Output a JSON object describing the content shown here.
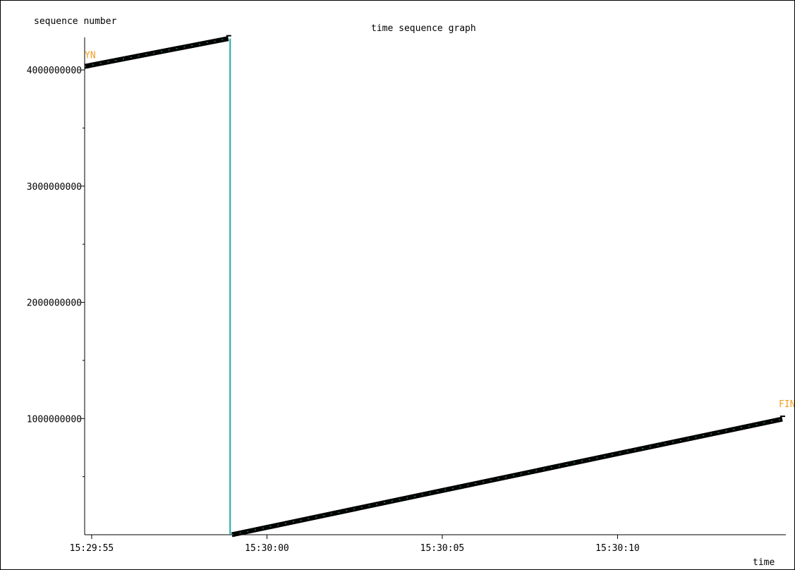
{
  "chart_data": {
    "type": "line",
    "title": "time sequence graph",
    "ylabel": "sequence number",
    "xlabel": "time",
    "x_ticks": [
      {
        "label": "15:29:55",
        "t": 0
      },
      {
        "label": "15:30:00",
        "t": 5
      },
      {
        "label": "15:30:05",
        "t": 10
      },
      {
        "label": "15:30:10",
        "t": 15
      }
    ],
    "y_ticks": [
      {
        "label": "1000000000",
        "v": 1000000000
      },
      {
        "label": "2000000000",
        "v": 2000000000
      },
      {
        "label": "3000000000",
        "v": 3000000000
      },
      {
        "label": "4000000000",
        "v": 4000000000
      }
    ],
    "xlim_seconds": [
      -0.2,
      19.8
    ],
    "ylim": [
      0,
      4280000000
    ],
    "series": [
      {
        "points": [
          {
            "t": -0.2,
            "v": 4030000000
          },
          {
            "t": 3.9,
            "v": 4270000000
          }
        ]
      },
      {
        "points": [
          {
            "t": 4.0,
            "v": 0
          },
          {
            "t": 19.7,
            "v": 995000000
          }
        ]
      }
    ],
    "wrap_line": {
      "t": 3.95,
      "v_from": 4270000000,
      "v_to": 0
    },
    "annotations": [
      {
        "text": "YN",
        "t": -0.2,
        "v": 4100000000
      },
      {
        "text": "FIN",
        "t": 19.6,
        "v": 1100000000
      }
    ],
    "colors": {
      "data": "#000000",
      "data_highlight": "#2bb673",
      "wrap_line": "#1fa8a8",
      "marker": "#f0a020",
      "axis": "#000000"
    }
  }
}
